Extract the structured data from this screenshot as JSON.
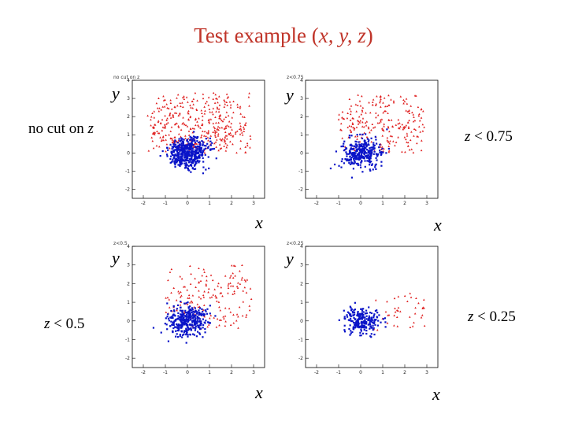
{
  "header": {
    "title_main": "Test example (",
    "title_vars": "x, y, z",
    "title_end": ")"
  },
  "axes": {
    "x_label": "x",
    "y_label": "y"
  },
  "panel_titles": [
    "no cut on z",
    "z<0.75",
    "z<0.5",
    "z<0.25"
  ],
  "cut_labels": [
    {
      "pre": "no cut on ",
      "var": "z",
      "post": ""
    },
    {
      "pre": "",
      "var": "z",
      "post": " < 0.75"
    },
    {
      "pre": "",
      "var": "z",
      "post": " < 0.5"
    },
    {
      "pre": "",
      "var": "z",
      "post": " < 0.25"
    }
  ],
  "colors": {
    "title": "#c0352a",
    "signal": "#0a14c8",
    "background": "#e02020",
    "frame": "#000000"
  },
  "chart_data": [
    {
      "type": "scatter",
      "title": "no cut on z",
      "xlabel": "x",
      "ylabel": "y",
      "xlim": [
        -2.5,
        3.5
      ],
      "ylim": [
        -2.5,
        4
      ],
      "xticks": [
        -2,
        -1,
        0,
        1,
        2,
        3
      ],
      "yticks": [
        -2,
        -1,
        0,
        1,
        2,
        3,
        4
      ],
      "series": [
        {
          "color": "#0a14c8",
          "center": [
            0.0,
            0.0
          ],
          "sigma": [
            0.45,
            0.4
          ],
          "count": 500,
          "shape": "square"
        },
        {
          "color": "#e02020",
          "center": [
            0.5,
            1.6
          ],
          "spread": [
            [
              -1.8,
              2.9
            ],
            [
              0.0,
              3.3
            ]
          ],
          "count": 500,
          "shape": "triangle"
        }
      ]
    },
    {
      "type": "scatter",
      "title": "z<0.75",
      "xlabel": "x",
      "ylabel": "y",
      "xlim": [
        -2.5,
        3.5
      ],
      "ylim": [
        -2.5,
        4
      ],
      "xticks": [
        -2,
        -1,
        0,
        1,
        2,
        3
      ],
      "yticks": [
        -2,
        -1,
        0,
        1,
        2,
        3,
        4
      ],
      "series": [
        {
          "color": "#0a14c8",
          "center": [
            0.0,
            0.0
          ],
          "sigma": [
            0.45,
            0.4
          ],
          "count": 320,
          "shape": "square"
        },
        {
          "color": "#e02020",
          "center": [
            1.0,
            1.5
          ],
          "spread": [
            [
              -1.0,
              2.9
            ],
            [
              0.0,
              3.2
            ]
          ],
          "count": 260,
          "shape": "triangle"
        }
      ]
    },
    {
      "type": "scatter",
      "title": "z<0.5",
      "xlabel": "x",
      "ylabel": "y",
      "xlim": [
        -2.5,
        3.5
      ],
      "ylim": [
        -2.5,
        4
      ],
      "xticks": [
        -2,
        -1,
        0,
        1,
        2,
        3
      ],
      "yticks": [
        -2,
        -1,
        0,
        1,
        2,
        3,
        4
      ],
      "series": [
        {
          "color": "#0a14c8",
          "center": [
            0.0,
            0.0
          ],
          "sigma": [
            0.45,
            0.4
          ],
          "count": 360,
          "shape": "square"
        },
        {
          "color": "#e02020",
          "center": [
            1.2,
            1.1
          ],
          "spread": [
            [
              -1.0,
              2.9
            ],
            [
              -0.5,
              3.0
            ]
          ],
          "count": 200,
          "shape": "triangle"
        }
      ]
    },
    {
      "type": "scatter",
      "title": "z<0.25",
      "xlabel": "x",
      "ylabel": "y",
      "xlim": [
        -2.5,
        3.5
      ],
      "ylim": [
        -2.5,
        4
      ],
      "xticks": [
        -2,
        -1,
        0,
        1,
        2,
        3
      ],
      "yticks": [
        -2,
        -1,
        0,
        1,
        2,
        3,
        4
      ],
      "series": [
        {
          "color": "#0a14c8",
          "center": [
            0.0,
            0.0
          ],
          "sigma": [
            0.4,
            0.35
          ],
          "count": 230,
          "shape": "square"
        },
        {
          "color": "#e02020",
          "center": [
            1.6,
            0.4
          ],
          "spread": [
            [
              0.5,
              2.9
            ],
            [
              -0.5,
              1.5
            ]
          ],
          "count": 40,
          "shape": "triangle"
        }
      ]
    }
  ]
}
